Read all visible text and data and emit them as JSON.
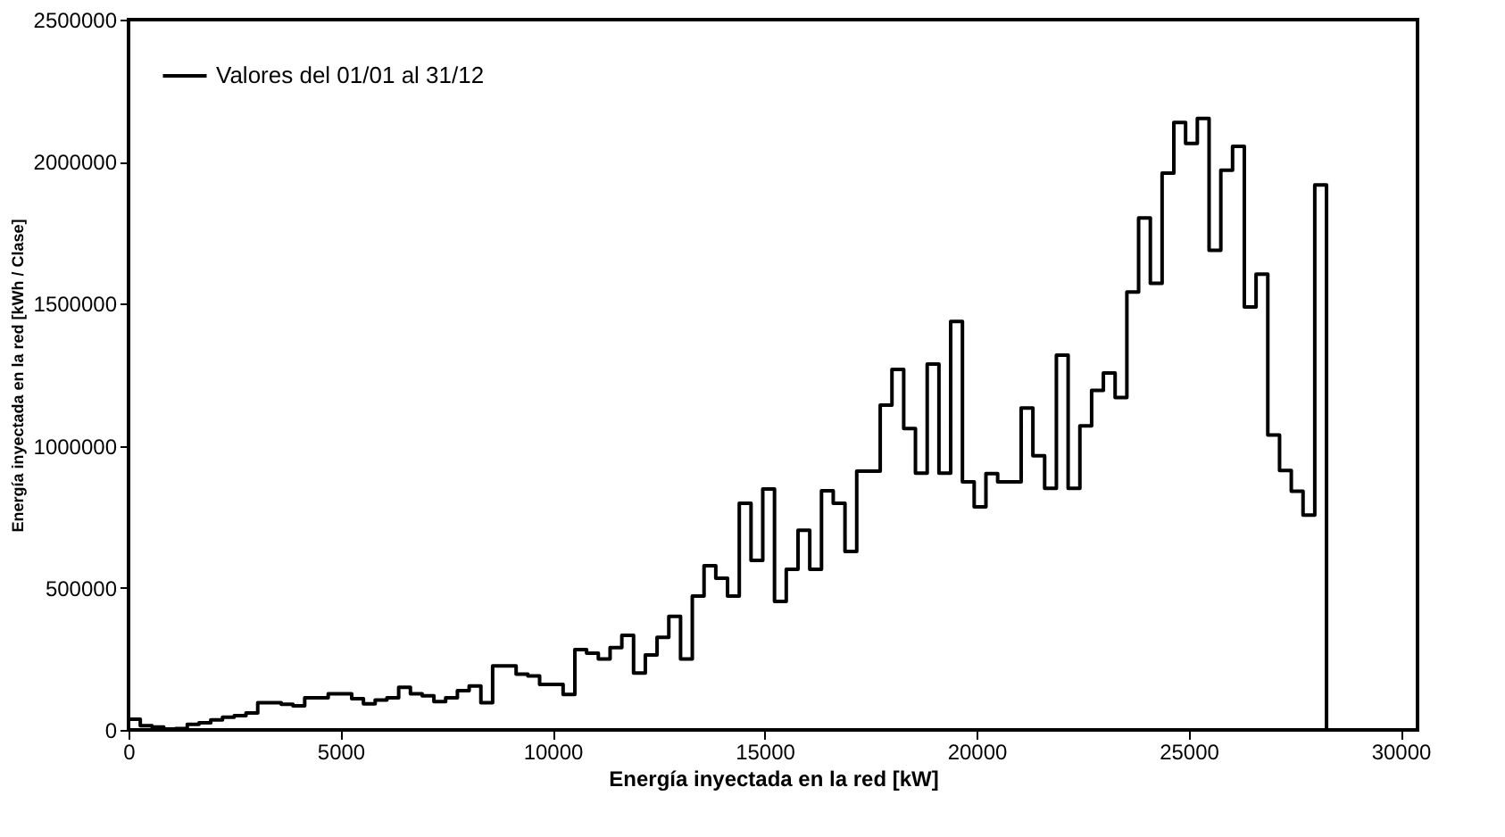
{
  "chart_data": {
    "type": "histogram",
    "xlabel": "Energía inyectada en la red [kW]",
    "ylabel": "Energía inyectada en la red [kWh / Clase]",
    "bins": [
      0,
      277,
      554,
      831,
      1108,
      1385,
      1662,
      1939,
      2216,
      2493,
      2770,
      3047,
      3324,
      3601,
      3878,
      4155,
      4432,
      4709,
      4986,
      5263,
      5540,
      5817,
      6094,
      6371,
      6648,
      6925,
      7202,
      7479,
      7756,
      8033,
      8310,
      8587,
      8864,
      9141,
      9418,
      9695,
      9972,
      10249,
      10526,
      10803,
      11080,
      11357,
      11634,
      11911,
      12188,
      12465,
      12742,
      13019,
      13296,
      13573,
      13850,
      14127,
      14404,
      14681,
      14958,
      15235,
      15512,
      15789,
      16066,
      16343,
      16620,
      16897,
      17174,
      17451,
      17728,
      18005,
      18282,
      18559,
      18836,
      19113,
      19390,
      19667,
      19944,
      20221,
      20498,
      20775,
      21052,
      21329,
      21606,
      21883,
      22160,
      22437,
      22714,
      22991,
      23268,
      23545,
      23822,
      24099,
      24376,
      24653,
      24930,
      25207,
      25484,
      25761,
      26038,
      26315,
      26592,
      26869,
      27146,
      27423,
      27700,
      27977,
      28254
    ],
    "series": [
      {
        "name": "Valores del 01/01 al 31/12",
        "color": "#000000",
        "values": [
          38000,
          15000,
          10000,
          3000,
          5000,
          20000,
          25000,
          35000,
          45000,
          50000,
          60000,
          96000,
          96000,
          90000,
          85000,
          113000,
          113000,
          127000,
          127000,
          110000,
          92000,
          105000,
          113000,
          150000,
          127000,
          120000,
          100000,
          113000,
          138000,
          155000,
          96000,
          225000,
          225000,
          196000,
          190000,
          160000,
          160000,
          125000,
          283000,
          270000,
          250000,
          290000,
          333000,
          200000,
          264000,
          326000,
          400000,
          250000,
          471000,
          578000,
          534000,
          471000,
          798000,
          597000,
          848000,
          452000,
          565000,
          703000,
          565000,
          842000,
          798000,
          628000,
          911000,
          911000,
          1143000,
          1269000,
          1061000,
          904000,
          1288000,
          904000,
          1438000,
          873000,
          785000,
          902000,
          873000,
          873000,
          1133000,
          965000,
          850000,
          1319000,
          850000,
          1070000,
          1195000,
          1256000,
          1170000,
          1541000,
          1802000,
          1572000,
          1960000,
          2138000,
          2064000,
          2152000,
          1688000,
          1970000,
          2054000,
          1489000,
          1604000,
          1038000,
          913000,
          840000,
          756000,
          1918000
        ]
      }
    ],
    "xlim": [
      0,
      30400
    ],
    "xticks": [
      0,
      5000,
      10000,
      15000,
      20000,
      25000,
      30000
    ],
    "ylim": [
      0,
      2500000
    ],
    "yticks": [
      0,
      500000,
      1000000,
      1500000,
      2000000,
      2500000
    ],
    "legend": "top left",
    "grid": false
  }
}
